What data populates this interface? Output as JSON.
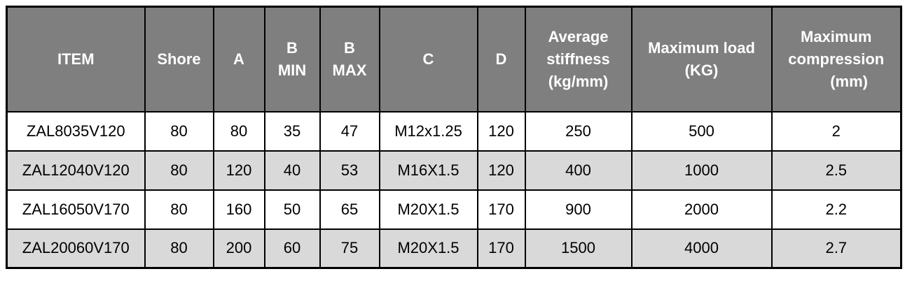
{
  "colors": {
    "header_bg": "#7f7f7f",
    "header_text": "#ffffff",
    "row_bg": "#ffffff",
    "row_alt_bg": "#d9d9d9",
    "border": "#000000",
    "body_text": "#000000"
  },
  "table": {
    "headers": [
      "ITEM",
      "Shore",
      "A",
      "B\nMIN",
      "B\nMAX",
      "C",
      "D",
      "Average\nstiffness\n(kg/mm)",
      "Maximum load\n(KG)",
      "Maximum\ncompression\n      (mm)"
    ],
    "rows": [
      [
        "ZAL8035V120",
        "80",
        "80",
        "35",
        "47",
        "M12x1.25",
        "120",
        "250",
        "500",
        "2"
      ],
      [
        "ZAL12040V120",
        "80",
        "120",
        "40",
        "53",
        "M16X1.5",
        "120",
        "400",
        "1000",
        "2.5"
      ],
      [
        "ZAL16050V170",
        "80",
        "160",
        "50",
        "65",
        "M20X1.5",
        "170",
        "900",
        "2000",
        "2.2"
      ],
      [
        "ZAL20060V170",
        "80",
        "200",
        "60",
        "75",
        "M20X1.5",
        "170",
        "1500",
        "4000",
        "2.7"
      ]
    ]
  }
}
